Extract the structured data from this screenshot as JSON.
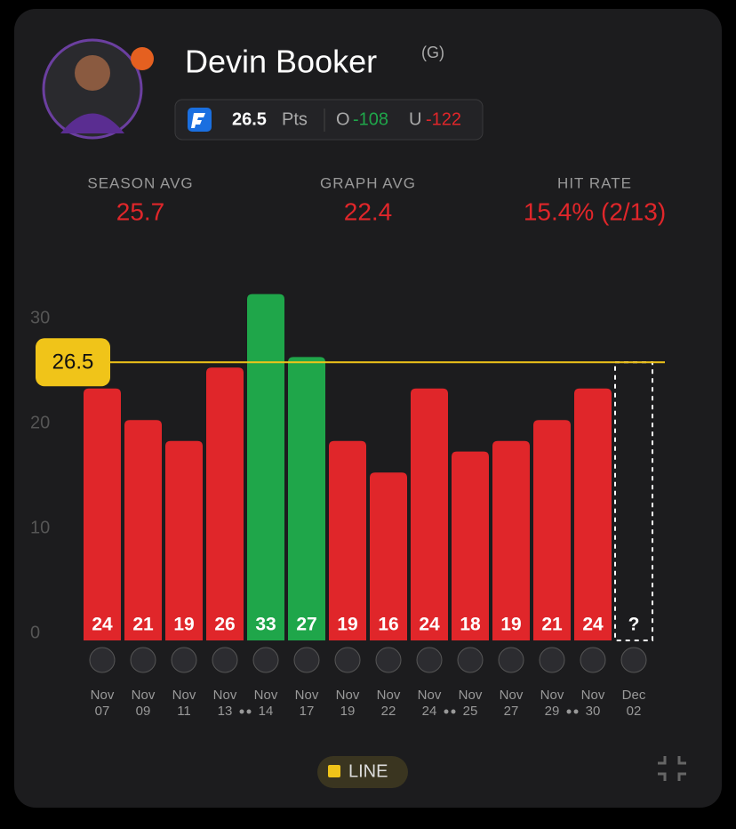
{
  "header": {
    "name": "Devin Booker",
    "position": "(G)",
    "line_unit": "Pts",
    "over_label": "O",
    "over": "-108",
    "under_label": "U",
    "under": "-122"
  },
  "stats": [
    {
      "label": "SEASON AVG",
      "value": "25.7"
    },
    {
      "label": "GRAPH AVG",
      "value": "22.4"
    },
    {
      "label": "HIT RATE",
      "value": "15.4% (2/13)"
    }
  ],
  "chart_data": {
    "type": "bar",
    "categories": [
      "Nov 07",
      "Nov 09",
      "Nov 11",
      "Nov 13",
      "Nov 14",
      "Nov 17",
      "Nov 19",
      "Nov 22",
      "Nov 24",
      "Nov 25",
      "Nov 27",
      "Nov 29",
      "Nov 30",
      "Dec 02"
    ],
    "values": [
      24,
      21,
      19,
      26,
      33,
      27,
      19,
      16,
      24,
      18,
      19,
      21,
      24,
      null
    ],
    "value_labels": [
      "24",
      "21",
      "19",
      "26",
      "33",
      "27",
      "19",
      "16",
      "24",
      "18",
      "19",
      "21",
      "24",
      "?"
    ],
    "back_to_back": [
      false,
      false,
      false,
      true,
      false,
      false,
      false,
      false,
      true,
      false,
      false,
      true,
      false,
      false
    ],
    "line": 26.5,
    "line_color": "#f0c419",
    "over_color": "#1fa64a",
    "under_color": "#e0262a",
    "ylim": [
      0,
      33
    ],
    "yticks": [
      0,
      10,
      20,
      30
    ],
    "legend": "LINE"
  }
}
